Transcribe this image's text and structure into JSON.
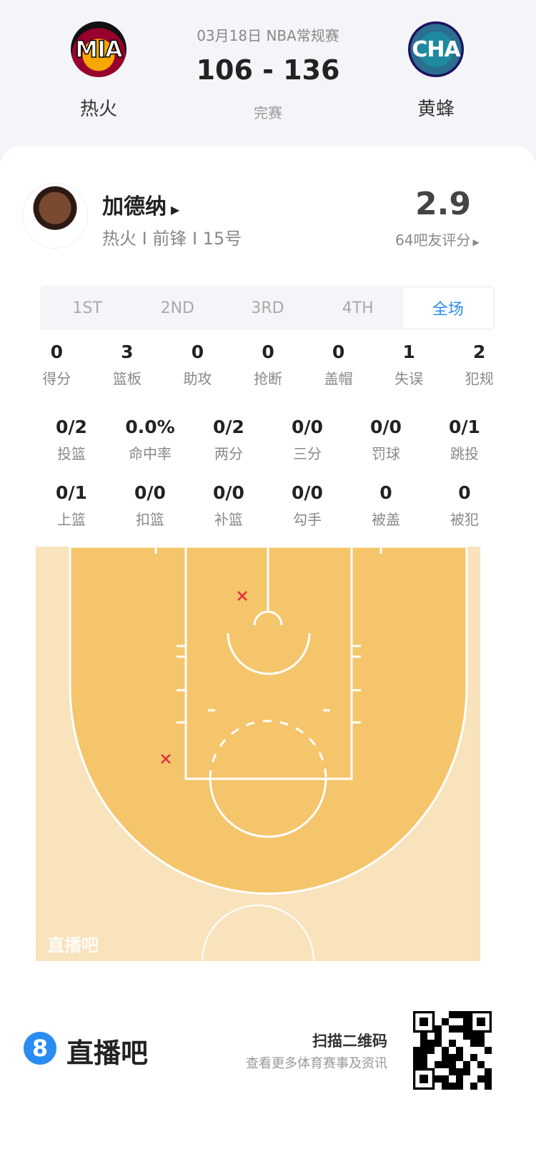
{
  "game": {
    "date_league": "03月18日 NBA常规赛",
    "score": "106 - 136",
    "status": "完赛",
    "home": {
      "abbr": "MIA",
      "name": "热火"
    },
    "away": {
      "abbr": "CHA",
      "name": "黄蜂"
    }
  },
  "player": {
    "name": "加德纳",
    "info": "热火 I 前锋 I 15号",
    "rating": "2.9",
    "rating_label": "64吧友评分"
  },
  "tabs": [
    "1ST",
    "2ND",
    "3RD",
    "4TH",
    "全场"
  ],
  "active_tab": "全场",
  "stats_row1": [
    {
      "v": "0",
      "l": "得分"
    },
    {
      "v": "3",
      "l": "篮板"
    },
    {
      "v": "0",
      "l": "助攻"
    },
    {
      "v": "0",
      "l": "抢断"
    },
    {
      "v": "0",
      "l": "盖帽"
    },
    {
      "v": "1",
      "l": "失误"
    },
    {
      "v": "2",
      "l": "犯规"
    }
  ],
  "stats_row2": [
    {
      "v": "0/2",
      "l": "投篮"
    },
    {
      "v": "0.0%",
      "l": "命中率"
    },
    {
      "v": "0/2",
      "l": "两分"
    },
    {
      "v": "0/0",
      "l": "三分"
    },
    {
      "v": "0/0",
      "l": "罚球"
    },
    {
      "v": "0/1",
      "l": "跳投"
    }
  ],
  "stats_row3": [
    {
      "v": "0/1",
      "l": "上篮"
    },
    {
      "v": "0/0",
      "l": "扣篮"
    },
    {
      "v": "0/0",
      "l": "补篮"
    },
    {
      "v": "0/0",
      "l": "勾手"
    },
    {
      "v": "0",
      "l": "被盖"
    },
    {
      "v": "0",
      "l": "被犯"
    }
  ],
  "shot_chart": {
    "shots": [
      {
        "result": "miss"
      },
      {
        "result": "miss"
      }
    ],
    "watermark": "直播吧",
    "colors": {
      "inside": "#f5c56b",
      "outside": "#f8e3bd",
      "miss": "#e0303c"
    }
  },
  "footer": {
    "brand": "直播吧",
    "scan": "扫描二维码",
    "sub": "查看更多体育赛事及资讯"
  },
  "colors": {
    "accent": "#2a8cf0"
  }
}
